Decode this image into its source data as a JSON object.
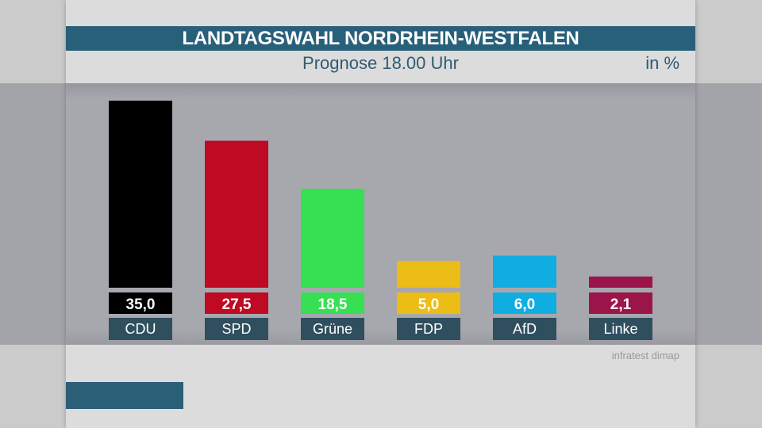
{
  "header": {
    "title": "LANDTAGSWAHL NORDRHEIN-WESTFALEN",
    "subtitle": "Prognose 18.00 Uhr",
    "unit": "in %"
  },
  "source": "infratest dimap",
  "chart_data": {
    "type": "bar",
    "title": "LANDTAGSWAHL NORDRHEIN-WESTFALEN",
    "subtitle": "Prognose 18.00 Uhr",
    "ylabel": "in %",
    "categories": [
      "CDU",
      "SPD",
      "Grüne",
      "FDP",
      "AfD",
      "Linke"
    ],
    "values": [
      35.0,
      27.5,
      18.5,
      5.0,
      6.0,
      2.1
    ],
    "value_labels": [
      "35,0",
      "27,5",
      "18,5",
      "5,0",
      "6,0",
      "2,1"
    ],
    "colors": [
      "#000000",
      "#be0a23",
      "#37df53",
      "#ecbc17",
      "#10ade0",
      "#9c154a"
    ],
    "ylim": [
      0,
      35
    ],
    "grid": false
  }
}
